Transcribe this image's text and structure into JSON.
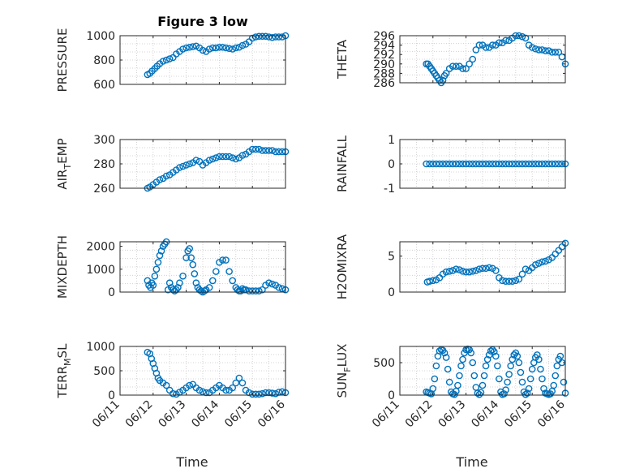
{
  "figure": {
    "title": "Figure 3 low",
    "marker_color": "#0072BD"
  },
  "chart_data": [
    {
      "type": "scatter",
      "title": "Figure 3 low",
      "ylabel": "PRESSURE",
      "ylabel_parts": [
        "PRESSURE"
      ],
      "xlabel": "",
      "xlim": [
        0,
        5
      ],
      "ylim": [
        600,
        1000
      ],
      "yticks": [
        600,
        800,
        1000
      ],
      "xticks": [
        0,
        1,
        2,
        3,
        4,
        5
      ],
      "xticklabels": [],
      "grid": true,
      "x": [
        0.83,
        0.9,
        0.97,
        1.05,
        1.12,
        1.2,
        1.3,
        1.4,
        1.5,
        1.6,
        1.7,
        1.8,
        1.9,
        2.0,
        2.1,
        2.2,
        2.3,
        2.4,
        2.5,
        2.6,
        2.7,
        2.8,
        2.9,
        3.0,
        3.1,
        3.2,
        3.3,
        3.4,
        3.5,
        3.6,
        3.7,
        3.8,
        3.9,
        4.0,
        4.1,
        4.2,
        4.3,
        4.4,
        4.5,
        4.6,
        4.7,
        4.8,
        4.9,
        5.0
      ],
      "y": [
        680,
        690,
        710,
        730,
        750,
        770,
        790,
        800,
        810,
        820,
        850,
        870,
        890,
        900,
        905,
        910,
        915,
        900,
        880,
        870,
        890,
        900,
        900,
        905,
        905,
        900,
        895,
        890,
        900,
        905,
        920,
        930,
        950,
        980,
        990,
        995,
        995,
        995,
        990,
        985,
        990,
        990,
        990,
        1000
      ]
    },
    {
      "type": "scatter",
      "title": "",
      "ylabel": "THETA",
      "ylabel_parts": [
        "THETA"
      ],
      "xlabel": "",
      "xlim": [
        0,
        5
      ],
      "ylim": [
        286,
        296
      ],
      "yticks": [
        286,
        288,
        290,
        292,
        294,
        296
      ],
      "xticks": [
        0,
        1,
        2,
        3,
        4,
        5
      ],
      "xticklabels": [],
      "grid": true,
      "x": [
        0.8,
        0.85,
        0.9,
        0.95,
        1.0,
        1.05,
        1.1,
        1.15,
        1.2,
        1.25,
        1.3,
        1.35,
        1.4,
        1.5,
        1.6,
        1.7,
        1.8,
        1.9,
        2.0,
        2.1,
        2.2,
        2.3,
        2.4,
        2.5,
        2.6,
        2.7,
        2.8,
        2.9,
        3.0,
        3.1,
        3.2,
        3.3,
        3.4,
        3.5,
        3.6,
        3.7,
        3.8,
        3.9,
        4.0,
        4.1,
        4.2,
        4.3,
        4.4,
        4.5,
        4.6,
        4.7,
        4.8,
        4.9,
        5.0
      ],
      "y": [
        290,
        290,
        289.5,
        289,
        288.5,
        288,
        287.5,
        287,
        286.5,
        286,
        286.5,
        287.5,
        288,
        289,
        289.5,
        289.5,
        289.5,
        289,
        289,
        290,
        291,
        293,
        294,
        294,
        293.5,
        293.5,
        294,
        294,
        294.5,
        294.5,
        295,
        295,
        295.5,
        296,
        296,
        295.8,
        295.5,
        294,
        293.5,
        293.2,
        293,
        293,
        292.8,
        292.8,
        292.5,
        292.5,
        292.5,
        291.5,
        290
      ]
    },
    {
      "type": "scatter",
      "title": "",
      "ylabel": "AIR_TEMP",
      "ylabel_parts": [
        "AIR",
        "T",
        "EMP"
      ],
      "xlabel": "",
      "xlim": [
        0,
        5
      ],
      "ylim": [
        260,
        300
      ],
      "yticks": [
        260,
        280,
        300
      ],
      "xticks": [
        0,
        1,
        2,
        3,
        4,
        5
      ],
      "xticklabels": [],
      "grid": true,
      "x": [
        0.83,
        0.9,
        1.0,
        1.1,
        1.2,
        1.3,
        1.4,
        1.5,
        1.6,
        1.7,
        1.8,
        1.9,
        2.0,
        2.1,
        2.2,
        2.3,
        2.4,
        2.5,
        2.6,
        2.7,
        2.8,
        2.9,
        3.0,
        3.1,
        3.2,
        3.3,
        3.4,
        3.5,
        3.6,
        3.7,
        3.8,
        3.9,
        4.0,
        4.1,
        4.2,
        4.3,
        4.4,
        4.5,
        4.6,
        4.7,
        4.8,
        4.9,
        5.0
      ],
      "y": [
        260,
        261,
        263,
        265,
        267,
        268,
        270,
        271,
        273,
        275,
        277,
        278,
        279,
        280,
        281,
        283,
        282,
        279,
        281,
        283,
        284,
        285,
        286,
        286,
        286,
        286,
        285,
        284,
        285,
        287,
        288,
        290,
        292,
        292,
        292,
        291,
        291,
        291,
        291,
        290,
        290,
        290,
        290
      ]
    },
    {
      "type": "scatter",
      "title": "",
      "ylabel": "RAINFALL",
      "ylabel_parts": [
        "RAINFALL"
      ],
      "xlabel": "",
      "xlim": [
        0,
        5
      ],
      "ylim": [
        -1,
        1
      ],
      "yticks": [
        -1,
        0,
        1
      ],
      "xticks": [
        0,
        1,
        2,
        3,
        4,
        5
      ],
      "xticklabels": [],
      "grid": true,
      "x": [
        0.8,
        0.9,
        1.0,
        1.1,
        1.2,
        1.3,
        1.4,
        1.5,
        1.6,
        1.7,
        1.8,
        1.9,
        2.0,
        2.1,
        2.2,
        2.3,
        2.4,
        2.5,
        2.6,
        2.7,
        2.8,
        2.9,
        3.0,
        3.1,
        3.2,
        3.3,
        3.4,
        3.5,
        3.6,
        3.7,
        3.8,
        3.9,
        4.0,
        4.1,
        4.2,
        4.3,
        4.4,
        4.5,
        4.6,
        4.7,
        4.8,
        4.9,
        5.0
      ],
      "y": [
        0,
        0,
        0,
        0,
        0,
        0,
        0,
        0,
        0,
        0,
        0,
        0,
        0,
        0,
        0,
        0,
        0,
        0,
        0,
        0,
        0,
        0,
        0,
        0,
        0,
        0,
        0,
        0,
        0,
        0,
        0,
        0,
        0,
        0,
        0,
        0,
        0,
        0,
        0,
        0,
        0,
        0,
        0
      ]
    },
    {
      "type": "scatter",
      "title": "",
      "ylabel": "MIXDEPTH",
      "ylabel_parts": [
        "MIXDEPTH"
      ],
      "xlabel": "",
      "xlim": [
        0,
        5
      ],
      "ylim": [
        0,
        2200
      ],
      "yticks": [
        0,
        1000,
        2000
      ],
      "xticks": [
        0,
        1,
        2,
        3,
        4,
        5
      ],
      "xticklabels": [],
      "grid": true,
      "x": [
        0.83,
        0.87,
        0.92,
        0.96,
        1.0,
        1.05,
        1.1,
        1.15,
        1.2,
        1.25,
        1.3,
        1.35,
        1.4,
        1.45,
        1.5,
        1.55,
        1.6,
        1.65,
        1.7,
        1.75,
        1.8,
        1.9,
        2.0,
        2.05,
        2.1,
        2.15,
        2.2,
        2.25,
        2.3,
        2.35,
        2.4,
        2.45,
        2.5,
        2.55,
        2.6,
        2.7,
        2.8,
        2.9,
        3.0,
        3.1,
        3.2,
        3.3,
        3.4,
        3.5,
        3.55,
        3.6,
        3.65,
        3.7,
        3.75,
        3.8,
        3.9,
        4.0,
        4.1,
        4.2,
        4.3,
        4.4,
        4.5,
        4.6,
        4.7,
        4.8,
        4.9,
        5.0
      ],
      "y": [
        500,
        300,
        200,
        400,
        300,
        700,
        1000,
        1300,
        1600,
        1800,
        2000,
        2100,
        2200,
        100,
        400,
        200,
        100,
        50,
        100,
        200,
        400,
        700,
        1500,
        1800,
        1900,
        1500,
        1200,
        800,
        400,
        200,
        100,
        50,
        0,
        50,
        100,
        200,
        500,
        900,
        1300,
        1400,
        1400,
        900,
        500,
        200,
        100,
        50,
        50,
        150,
        100,
        100,
        50,
        50,
        50,
        50,
        100,
        300,
        400,
        350,
        300,
        200,
        150,
        100
      ]
    },
    {
      "type": "scatter",
      "title": "",
      "ylabel": "H2OMIXRA",
      "ylabel_parts": [
        "H2OMIXRA"
      ],
      "xlabel": "",
      "xlim": [
        0,
        5
      ],
      "ylim": [
        0,
        7
      ],
      "yticks": [
        0,
        5
      ],
      "xticks": [
        0,
        1,
        2,
        3,
        4,
        5
      ],
      "xticklabels": [],
      "grid": true,
      "x": [
        0.83,
        0.9,
        1.0,
        1.1,
        1.2,
        1.3,
        1.4,
        1.5,
        1.6,
        1.7,
        1.8,
        1.9,
        2.0,
        2.1,
        2.2,
        2.3,
        2.4,
        2.5,
        2.6,
        2.7,
        2.8,
        2.9,
        3.0,
        3.1,
        3.2,
        3.3,
        3.4,
        3.5,
        3.6,
        3.7,
        3.8,
        3.9,
        4.0,
        4.1,
        4.2,
        4.3,
        4.4,
        4.5,
        4.6,
        4.7,
        4.8,
        4.9,
        5.0
      ],
      "y": [
        1.4,
        1.5,
        1.6,
        1.7,
        2.0,
        2.5,
        2.8,
        2.9,
        3.0,
        3.2,
        3.1,
        2.9,
        2.8,
        2.8,
        2.9,
        3.0,
        3.2,
        3.3,
        3.3,
        3.4,
        3.3,
        3.0,
        2.0,
        1.6,
        1.5,
        1.5,
        1.5,
        1.6,
        1.8,
        2.5,
        3.2,
        3.0,
        3.4,
        3.8,
        4.0,
        4.2,
        4.3,
        4.5,
        4.8,
        5.3,
        5.8,
        6.3,
        6.8
      ]
    },
    {
      "type": "scatter",
      "title": "",
      "ylabel": "TERR_MSL",
      "ylabel_parts": [
        "TERR",
        "M",
        "SL"
      ],
      "xlabel": "Time",
      "xlim": [
        0,
        5
      ],
      "ylim": [
        0,
        1000
      ],
      "yticks": [
        0,
        500,
        1000
      ],
      "xticks": [
        0,
        1,
        2,
        3,
        4,
        5
      ],
      "xticklabels": [
        "06/11",
        "06/12",
        "06/13",
        "06/14",
        "06/15",
        "06/16"
      ],
      "grid": true,
      "x": [
        0.83,
        0.9,
        0.95,
        1.0,
        1.05,
        1.1,
        1.15,
        1.2,
        1.3,
        1.4,
        1.5,
        1.6,
        1.7,
        1.8,
        1.9,
        2.0,
        2.1,
        2.2,
        2.3,
        2.4,
        2.5,
        2.6,
        2.7,
        2.8,
        2.9,
        3.0,
        3.1,
        3.2,
        3.3,
        3.4,
        3.5,
        3.6,
        3.7,
        3.8,
        3.9,
        4.0,
        4.1,
        4.2,
        4.3,
        4.4,
        4.5,
        4.6,
        4.7,
        4.8,
        4.9,
        5.0
      ],
      "y": [
        880,
        850,
        750,
        650,
        550,
        450,
        350,
        300,
        250,
        200,
        100,
        30,
        20,
        60,
        100,
        150,
        200,
        220,
        150,
        100,
        70,
        50,
        50,
        100,
        150,
        200,
        150,
        100,
        100,
        150,
        250,
        350,
        250,
        100,
        50,
        20,
        20,
        20,
        30,
        50,
        50,
        40,
        30,
        60,
        70,
        50
      ]
    },
    {
      "type": "scatter",
      "title": "",
      "ylabel": "SUN_FLUX",
      "ylabel_parts": [
        "SUN",
        "F",
        "LUX"
      ],
      "xlabel": "Time",
      "xlim": [
        0,
        5
      ],
      "ylim": [
        0,
        750
      ],
      "yticks": [
        0,
        500
      ],
      "xticks": [
        0,
        1,
        2,
        3,
        4,
        5
      ],
      "xticklabels": [
        "06/11",
        "06/12",
        "06/13",
        "06/14",
        "06/15",
        "06/16"
      ],
      "grid": true,
      "x": [
        0.8,
        0.85,
        0.9,
        0.95,
        1.0,
        1.05,
        1.1,
        1.15,
        1.2,
        1.25,
        1.3,
        1.35,
        1.4,
        1.45,
        1.5,
        1.55,
        1.6,
        1.65,
        1.7,
        1.75,
        1.8,
        1.85,
        1.9,
        1.95,
        2.0,
        2.05,
        2.1,
        2.15,
        2.2,
        2.25,
        2.3,
        2.35,
        2.4,
        2.45,
        2.5,
        2.55,
        2.6,
        2.65,
        2.7,
        2.75,
        2.8,
        2.85,
        2.9,
        2.95,
        3.0,
        3.05,
        3.1,
        3.15,
        3.2,
        3.25,
        3.3,
        3.35,
        3.4,
        3.45,
        3.5,
        3.55,
        3.6,
        3.65,
        3.7,
        3.75,
        3.8,
        3.85,
        3.9,
        3.95,
        4.0,
        4.05,
        4.1,
        4.15,
        4.2,
        4.25,
        4.3,
        4.35,
        4.4,
        4.45,
        4.5,
        4.55,
        4.6,
        4.65,
        4.7,
        4.75,
        4.8,
        4.85,
        4.9,
        4.95,
        5.0
      ],
      "y": [
        50,
        40,
        30,
        20,
        100,
        250,
        450,
        600,
        680,
        700,
        690,
        650,
        580,
        400,
        200,
        50,
        20,
        10,
        60,
        150,
        300,
        450,
        550,
        650,
        700,
        710,
        700,
        650,
        500,
        300,
        120,
        30,
        10,
        40,
        150,
        300,
        450,
        550,
        620,
        680,
        700,
        670,
        600,
        450,
        250,
        50,
        10,
        20,
        80,
        200,
        320,
        450,
        550,
        620,
        650,
        600,
        500,
        350,
        200,
        50,
        10,
        30,
        100,
        250,
        400,
        500,
        580,
        620,
        550,
        400,
        250,
        100,
        30,
        20,
        10,
        20,
        60,
        150,
        300,
        450,
        550,
        600,
        500,
        200,
        30
      ]
    }
  ]
}
